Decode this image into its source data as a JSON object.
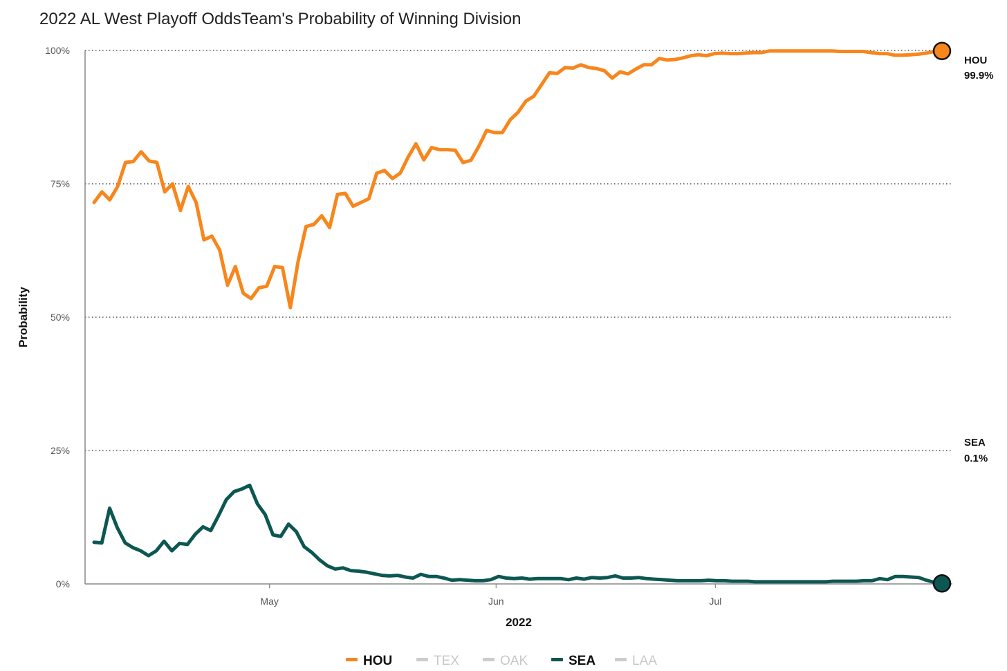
{
  "chart_data": {
    "type": "line",
    "title": "2022 AL West Playoff OddsTeam's Probability of Winning Division",
    "xlabel": "2022",
    "ylabel": "Probability",
    "x_ticks": [
      "May",
      "Jun",
      "Jul"
    ],
    "y_ticks": [
      "0%",
      "25%",
      "50%",
      "75%",
      "100%"
    ],
    "ylim": [
      0,
      100
    ],
    "grid": "horizontal dotted",
    "x_start": "2022-04-07",
    "x_end": "2022-08-01",
    "x_ticks_dates": [
      "2022-05-01",
      "2022-06-01",
      "2022-07-01"
    ],
    "series": [
      {
        "name": "HOU",
        "color": "#f7861c",
        "end_label": "99.9%",
        "values": [
          71.5,
          73.5,
          72,
          74.5,
          79,
          79.2,
          81,
          79.3,
          79,
          73.5,
          75,
          70,
          74.5,
          71.5,
          64.5,
          65.2,
          62.6,
          56,
          59.5,
          54.5,
          53.5,
          55.5,
          55.8,
          59.5,
          59.3,
          51.8,
          60.5,
          67,
          67.4,
          69,
          66.8,
          73,
          73.2,
          70.8,
          71.5,
          72.2,
          77,
          77.5,
          76,
          77,
          80,
          82.5,
          79.5,
          81.8,
          81.4,
          81.4,
          81.3,
          79,
          79.4,
          82,
          85,
          84.6,
          84.6,
          87,
          88.4,
          90.5,
          91.4,
          93.6,
          95.8,
          95.7,
          96.8,
          96.7,
          97.3,
          96.8,
          96.6,
          96.2,
          94.8,
          96,
          95.6,
          96.5,
          97.3,
          97.3,
          98.5,
          98.2,
          98.3,
          98.6,
          99,
          99.2,
          99,
          99.4,
          99.5,
          99.4,
          99.4,
          99.5,
          99.6,
          99.6,
          99.9,
          99.9,
          99.9,
          99.9,
          99.9,
          99.9,
          99.9,
          99.9,
          99.9,
          99.8,
          99.8,
          99.8,
          99.8,
          99.6,
          99.4,
          99.4,
          99.1,
          99.1,
          99.2,
          99.3,
          99.5,
          99.8,
          99.9
        ]
      },
      {
        "name": "TEX",
        "color": "#cccccc",
        "inactive": true,
        "values": []
      },
      {
        "name": "OAK",
        "color": "#cccccc",
        "inactive": true,
        "values": []
      },
      {
        "name": "SEA",
        "color": "#0d5752",
        "end_label": "0.1%",
        "values": [
          7.8,
          7.7,
          14.2,
          10.5,
          7.7,
          6.8,
          6.2,
          5.3,
          6.2,
          8,
          6.2,
          7.6,
          7.4,
          9.3,
          10.7,
          10,
          12.8,
          15.8,
          17.3,
          17.8,
          18.5,
          15,
          13,
          9.2,
          8.9,
          11.2,
          9.8,
          7,
          5.9,
          4.5,
          3.4,
          2.8,
          3,
          2.5,
          2.4,
          2.2,
          1.9,
          1.6,
          1.5,
          1.6,
          1.3,
          1.1,
          1.8,
          1.4,
          1.4,
          1.1,
          0.7,
          0.8,
          0.7,
          0.6,
          0.6,
          0.8,
          1.4,
          1.1,
          1,
          1.1,
          0.9,
          1,
          1,
          1,
          1,
          0.8,
          1.1,
          0.9,
          1.2,
          1.1,
          1.2,
          1.5,
          1.1,
          1.1,
          1.2,
          1,
          0.9,
          0.8,
          0.7,
          0.6,
          0.6,
          0.6,
          0.6,
          0.7,
          0.6,
          0.6,
          0.5,
          0.5,
          0.5,
          0.4,
          0.4,
          0.4,
          0.4,
          0.4,
          0.4,
          0.4,
          0.4,
          0.4,
          0.4,
          0.5,
          0.5,
          0.5,
          0.5,
          0.6,
          0.6,
          1,
          0.8,
          1.4,
          1.4,
          1.3,
          1.2,
          0.7,
          0.3,
          0.1
        ]
      },
      {
        "name": "LAA",
        "color": "#cccccc",
        "inactive": true,
        "values": []
      }
    ],
    "legend_position": "bottom"
  }
}
